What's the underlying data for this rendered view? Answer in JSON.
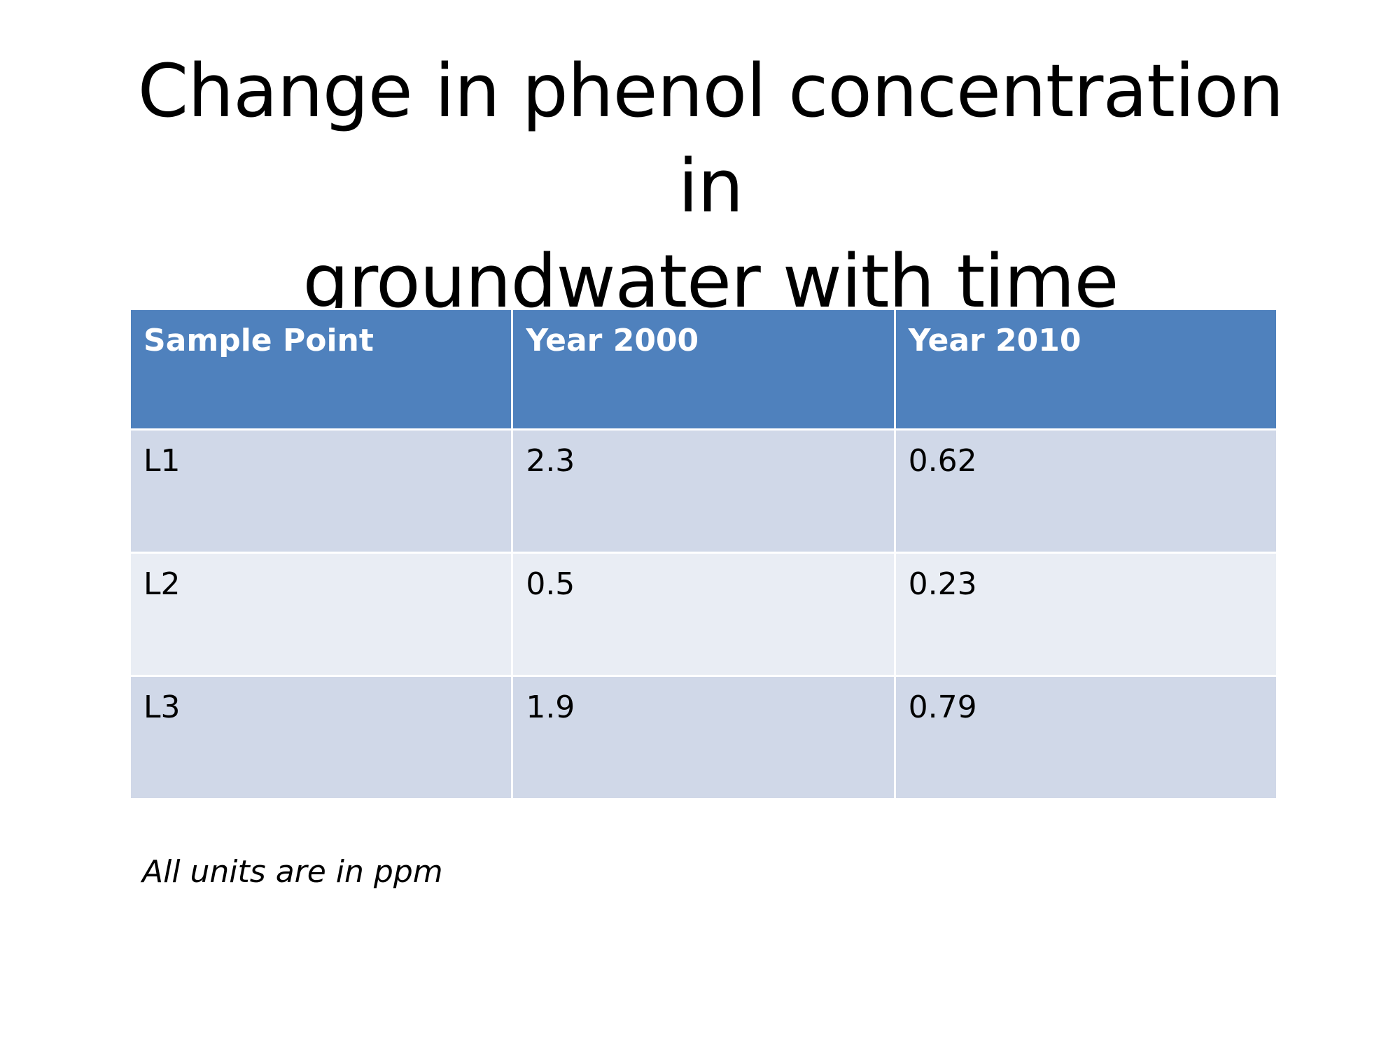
{
  "slide": {
    "title_line1": "Change in phenol concentration in",
    "title_line2": "groundwater with time",
    "table": {
      "headers": [
        "Sample Point",
        "Year 2000",
        "Year 2010"
      ],
      "rows": [
        [
          "L1",
          "2.3",
          "0.62"
        ],
        [
          "L2",
          "0.5",
          "0.23"
        ],
        [
          "L3",
          "1.9",
          "0.79"
        ]
      ]
    },
    "footnote": "All units are in ppm",
    "colors": {
      "header_bg": "#4f81bd",
      "row_odd_bg": "#d0d8e8",
      "row_even_bg": "#e9edf4"
    }
  }
}
